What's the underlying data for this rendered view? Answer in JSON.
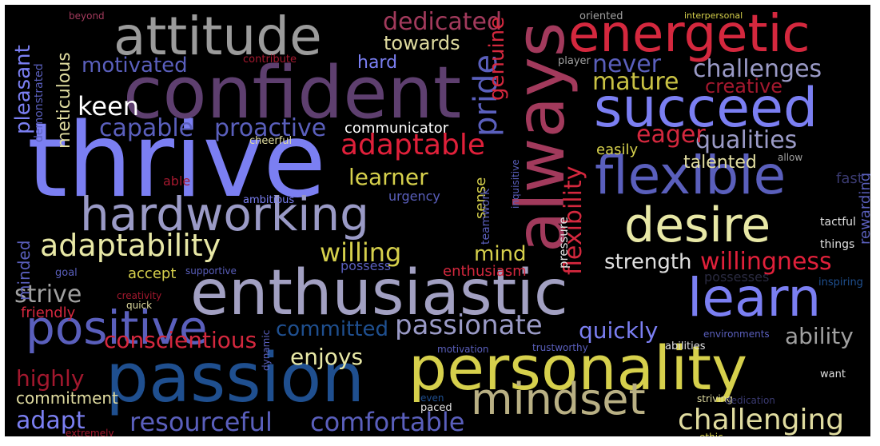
{
  "background": "#000000",
  "words": [
    {
      "text": "thrive",
      "color": "#7b7ff2"
    },
    {
      "text": "confident",
      "color": "#5e3f6f"
    },
    {
      "text": "passion",
      "color": "#1f4f8f"
    },
    {
      "text": "personality",
      "color": "#d6d04c"
    },
    {
      "text": "enthusiastic",
      "color": "#a2a0c2"
    },
    {
      "text": "always",
      "color": "#a23a5c"
    },
    {
      "text": "energetic",
      "color": "#d4283e"
    },
    {
      "text": "attitude",
      "color": "#9b9b9b"
    },
    {
      "text": "succeed",
      "color": "#7b7ff2"
    },
    {
      "text": "hardworking",
      "color": "#9a9ac6"
    },
    {
      "text": "flexible",
      "color": "#5a5fbc"
    },
    {
      "text": "learn",
      "color": "#7b7ff2"
    },
    {
      "text": "desire",
      "color": "#e8e8a6"
    },
    {
      "text": "mindset",
      "color": "#b9b084"
    },
    {
      "text": "positive",
      "color": "#5a5fbc"
    },
    {
      "text": "adaptable",
      "color": "#e0203a"
    },
    {
      "text": "adaptability",
      "color": "#e8e8a6"
    },
    {
      "text": "dedicated",
      "color": "#a23a5c"
    },
    {
      "text": "passionate",
      "color": "#9a9ac6"
    },
    {
      "text": "challenging",
      "color": "#e0dca0"
    },
    {
      "text": "resourceful",
      "color": "#5a5fbc"
    },
    {
      "text": "comfortable",
      "color": "#5a5fbc"
    },
    {
      "text": "pride",
      "color": "#5a5fbc"
    },
    {
      "text": "flexibility",
      "color": "#d4283e"
    },
    {
      "text": "willingness",
      "color": "#e0203a"
    },
    {
      "text": "challenges",
      "color": "#9a9ac6"
    },
    {
      "text": "qualities",
      "color": "#9a9ac6"
    },
    {
      "text": "mature",
      "color": "#c9c244"
    },
    {
      "text": "never",
      "color": "#5a5fbc"
    },
    {
      "text": "strive",
      "color": "#a0a0a0"
    },
    {
      "text": "keen",
      "color": "#ffffff"
    },
    {
      "text": "eager",
      "color": "#d4283e"
    },
    {
      "text": "proactive",
      "color": "#5a5fbc"
    },
    {
      "text": "capable",
      "color": "#5a5fbc"
    },
    {
      "text": "motivated",
      "color": "#5a5fbc"
    },
    {
      "text": "learner",
      "color": "#d6d04c"
    },
    {
      "text": "willing",
      "color": "#d6d04c"
    },
    {
      "text": "mind",
      "color": "#d6d04c"
    },
    {
      "text": "enjoys",
      "color": "#e8e8a6"
    },
    {
      "text": "conscientious",
      "color": "#d4283e"
    },
    {
      "text": "quickly",
      "color": "#7b7ff2"
    },
    {
      "text": "ability",
      "color": "#a0a0a0"
    },
    {
      "text": "strength",
      "color": "#e0e0e0"
    },
    {
      "text": "highly",
      "color": "#a3182e"
    },
    {
      "text": "adapt",
      "color": "#7b7ff2"
    },
    {
      "text": "committed",
      "color": "#1f4f8f"
    },
    {
      "text": "commitment",
      "color": "#e0dca0"
    },
    {
      "text": "genuine",
      "color": "#d4283e"
    },
    {
      "text": "creative",
      "color": "#a3182e"
    },
    {
      "text": "meticulous",
      "color": "#e0dca0"
    },
    {
      "text": "pleasant",
      "color": "#7b7ff2"
    },
    {
      "text": "towards",
      "color": "#e0dca0"
    },
    {
      "text": "hard",
      "color": "#7b7ff2"
    },
    {
      "text": "communicator",
      "color": "#ffffff"
    },
    {
      "text": "talented",
      "color": "#e0dca0"
    },
    {
      "text": "easily",
      "color": "#d6d04c"
    },
    {
      "text": "enthusiasm",
      "color": "#d4283e"
    },
    {
      "text": "accept",
      "color": "#d6d04c"
    },
    {
      "text": "sense",
      "color": "#d6d04c"
    },
    {
      "text": "minded",
      "color": "#5a5fbc"
    },
    {
      "text": "friendly",
      "color": "#d4283e"
    },
    {
      "text": "urgency",
      "color": "#5a5fbc"
    },
    {
      "text": "possesses",
      "color": "#2a2a40"
    },
    {
      "text": "teamwork",
      "color": "#5a5fbc"
    },
    {
      "text": "rewarding",
      "color": "#5a5fbc"
    },
    {
      "text": "fast",
      "color": "#3a3a70"
    },
    {
      "text": "pressure",
      "color": "#e0e0e0"
    },
    {
      "text": "demonstrated",
      "color": "#5a5fbc"
    },
    {
      "text": "contribute",
      "color": "#a3182e"
    },
    {
      "text": "beyond",
      "color": "#a23a5c"
    },
    {
      "text": "oriented",
      "color": "#a0a0a0"
    },
    {
      "text": "interpersonal",
      "color": "#d6d04c"
    },
    {
      "text": "player",
      "color": "#a0a0a0"
    },
    {
      "text": "cheerful",
      "color": "#e0dca0"
    },
    {
      "text": "able",
      "color": "#a3182e"
    },
    {
      "text": "ambitious",
      "color": "#7b7ff2"
    },
    {
      "text": "possess",
      "color": "#5a5fbc"
    },
    {
      "text": "goal",
      "color": "#5a5fbc"
    },
    {
      "text": "supportive",
      "color": "#5a5fbc"
    },
    {
      "text": "creativity",
      "color": "#a3182e"
    },
    {
      "text": "quick",
      "color": "#e0dca0"
    },
    {
      "text": "tactful",
      "color": "#e0e0e0"
    },
    {
      "text": "inquisitive",
      "color": "#5a5fbc"
    },
    {
      "text": "allow",
      "color": "#a0a0a0"
    },
    {
      "text": "things",
      "color": "#e0e0e0"
    },
    {
      "text": "inspiring",
      "color": "#1f4f8f"
    },
    {
      "text": "environments",
      "color": "#5a5fbc"
    },
    {
      "text": "abilities",
      "color": "#e0e0e0"
    },
    {
      "text": "motivation",
      "color": "#5a5fbc"
    },
    {
      "text": "trustworthy",
      "color": "#5a5fbc"
    },
    {
      "text": "dynamic",
      "color": "#5a5fbc"
    },
    {
      "text": "want",
      "color": "#e0e0e0"
    },
    {
      "text": "striving",
      "color": "#e0dca0"
    },
    {
      "text": "dedication",
      "color": "#3a3a70"
    },
    {
      "text": "ethic",
      "color": "#d6d04c"
    },
    {
      "text": "even",
      "color": "#1f4f8f"
    },
    {
      "text": "paced",
      "color": "#e0e0e0"
    },
    {
      "text": "extremely",
      "color": "#a3182e"
    }
  ]
}
